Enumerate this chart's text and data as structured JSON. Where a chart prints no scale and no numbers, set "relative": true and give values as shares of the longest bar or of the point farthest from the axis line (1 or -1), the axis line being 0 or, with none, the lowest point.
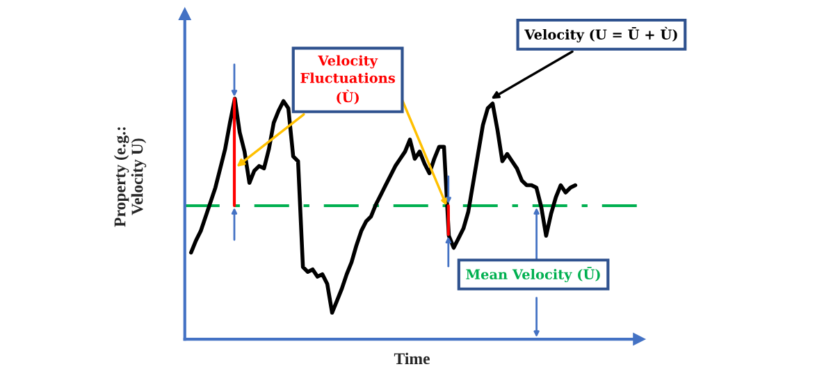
{
  "chart_data": {
    "type": "line",
    "relative": true,
    "xlabel": "Time",
    "ylabel": "Property (e.g.:\nVelocity U)",
    "categories": [
      null,
      null,
      null,
      null,
      null,
      null,
      null,
      null,
      null,
      null,
      null,
      null,
      null,
      null,
      null,
      null,
      null,
      null,
      null,
      null,
      null,
      null,
      null,
      null,
      null,
      null,
      null,
      null,
      null,
      null,
      null,
      null,
      null,
      null,
      null,
      null,
      null,
      null,
      null,
      null,
      null,
      null,
      null,
      null,
      null,
      null,
      null,
      null,
      null,
      null,
      null,
      null,
      null,
      null,
      null,
      null,
      null,
      null,
      null,
      null,
      null,
      null,
      null,
      null,
      null,
      null,
      null,
      null,
      null,
      null,
      null,
      null,
      null,
      null,
      null,
      null,
      null,
      null,
      null,
      null
    ],
    "series": [
      {
        "color": "#000000",
        "values": [
          0.36,
          0.41,
          0.45,
          0.51,
          0.57,
          0.63,
          0.71,
          0.79,
          0.9,
          1.0,
          0.86,
          0.78,
          0.65,
          0.7,
          0.72,
          0.71,
          0.79,
          0.9,
          0.95,
          0.99,
          0.96,
          0.76,
          0.74,
          0.3,
          0.28,
          0.29,
          0.26,
          0.27,
          0.23,
          0.11,
          0.16,
          0.21,
          0.27,
          0.32,
          0.39,
          0.45,
          0.49,
          0.51,
          0.56,
          0.6,
          0.64,
          0.68,
          0.72,
          0.75,
          0.78,
          0.83,
          0.75,
          0.78,
          0.73,
          0.69,
          0.75,
          0.8,
          0.8,
          0.43,
          0.38,
          0.42,
          0.46,
          0.53,
          0.65,
          0.77,
          0.89,
          0.96,
          0.98,
          0.87,
          0.74,
          0.77,
          0.74,
          0.71,
          0.66,
          0.64,
          0.64,
          0.63,
          0.55,
          0.43,
          0.52,
          0.59,
          0.64,
          0.61,
          0.63,
          0.64
        ]
      }
    ],
    "ref_lines": [
      {
        "axis": "y",
        "value": 0.555,
        "color": "#00b050",
        "line_style": "dashed"
      }
    ],
    "annotations": [
      "Velocity\nFluctuations\n(Ù)",
      "Velocity (U = Ū + Ù)",
      "Mean Velocity (Ū)"
    ]
  }
}
